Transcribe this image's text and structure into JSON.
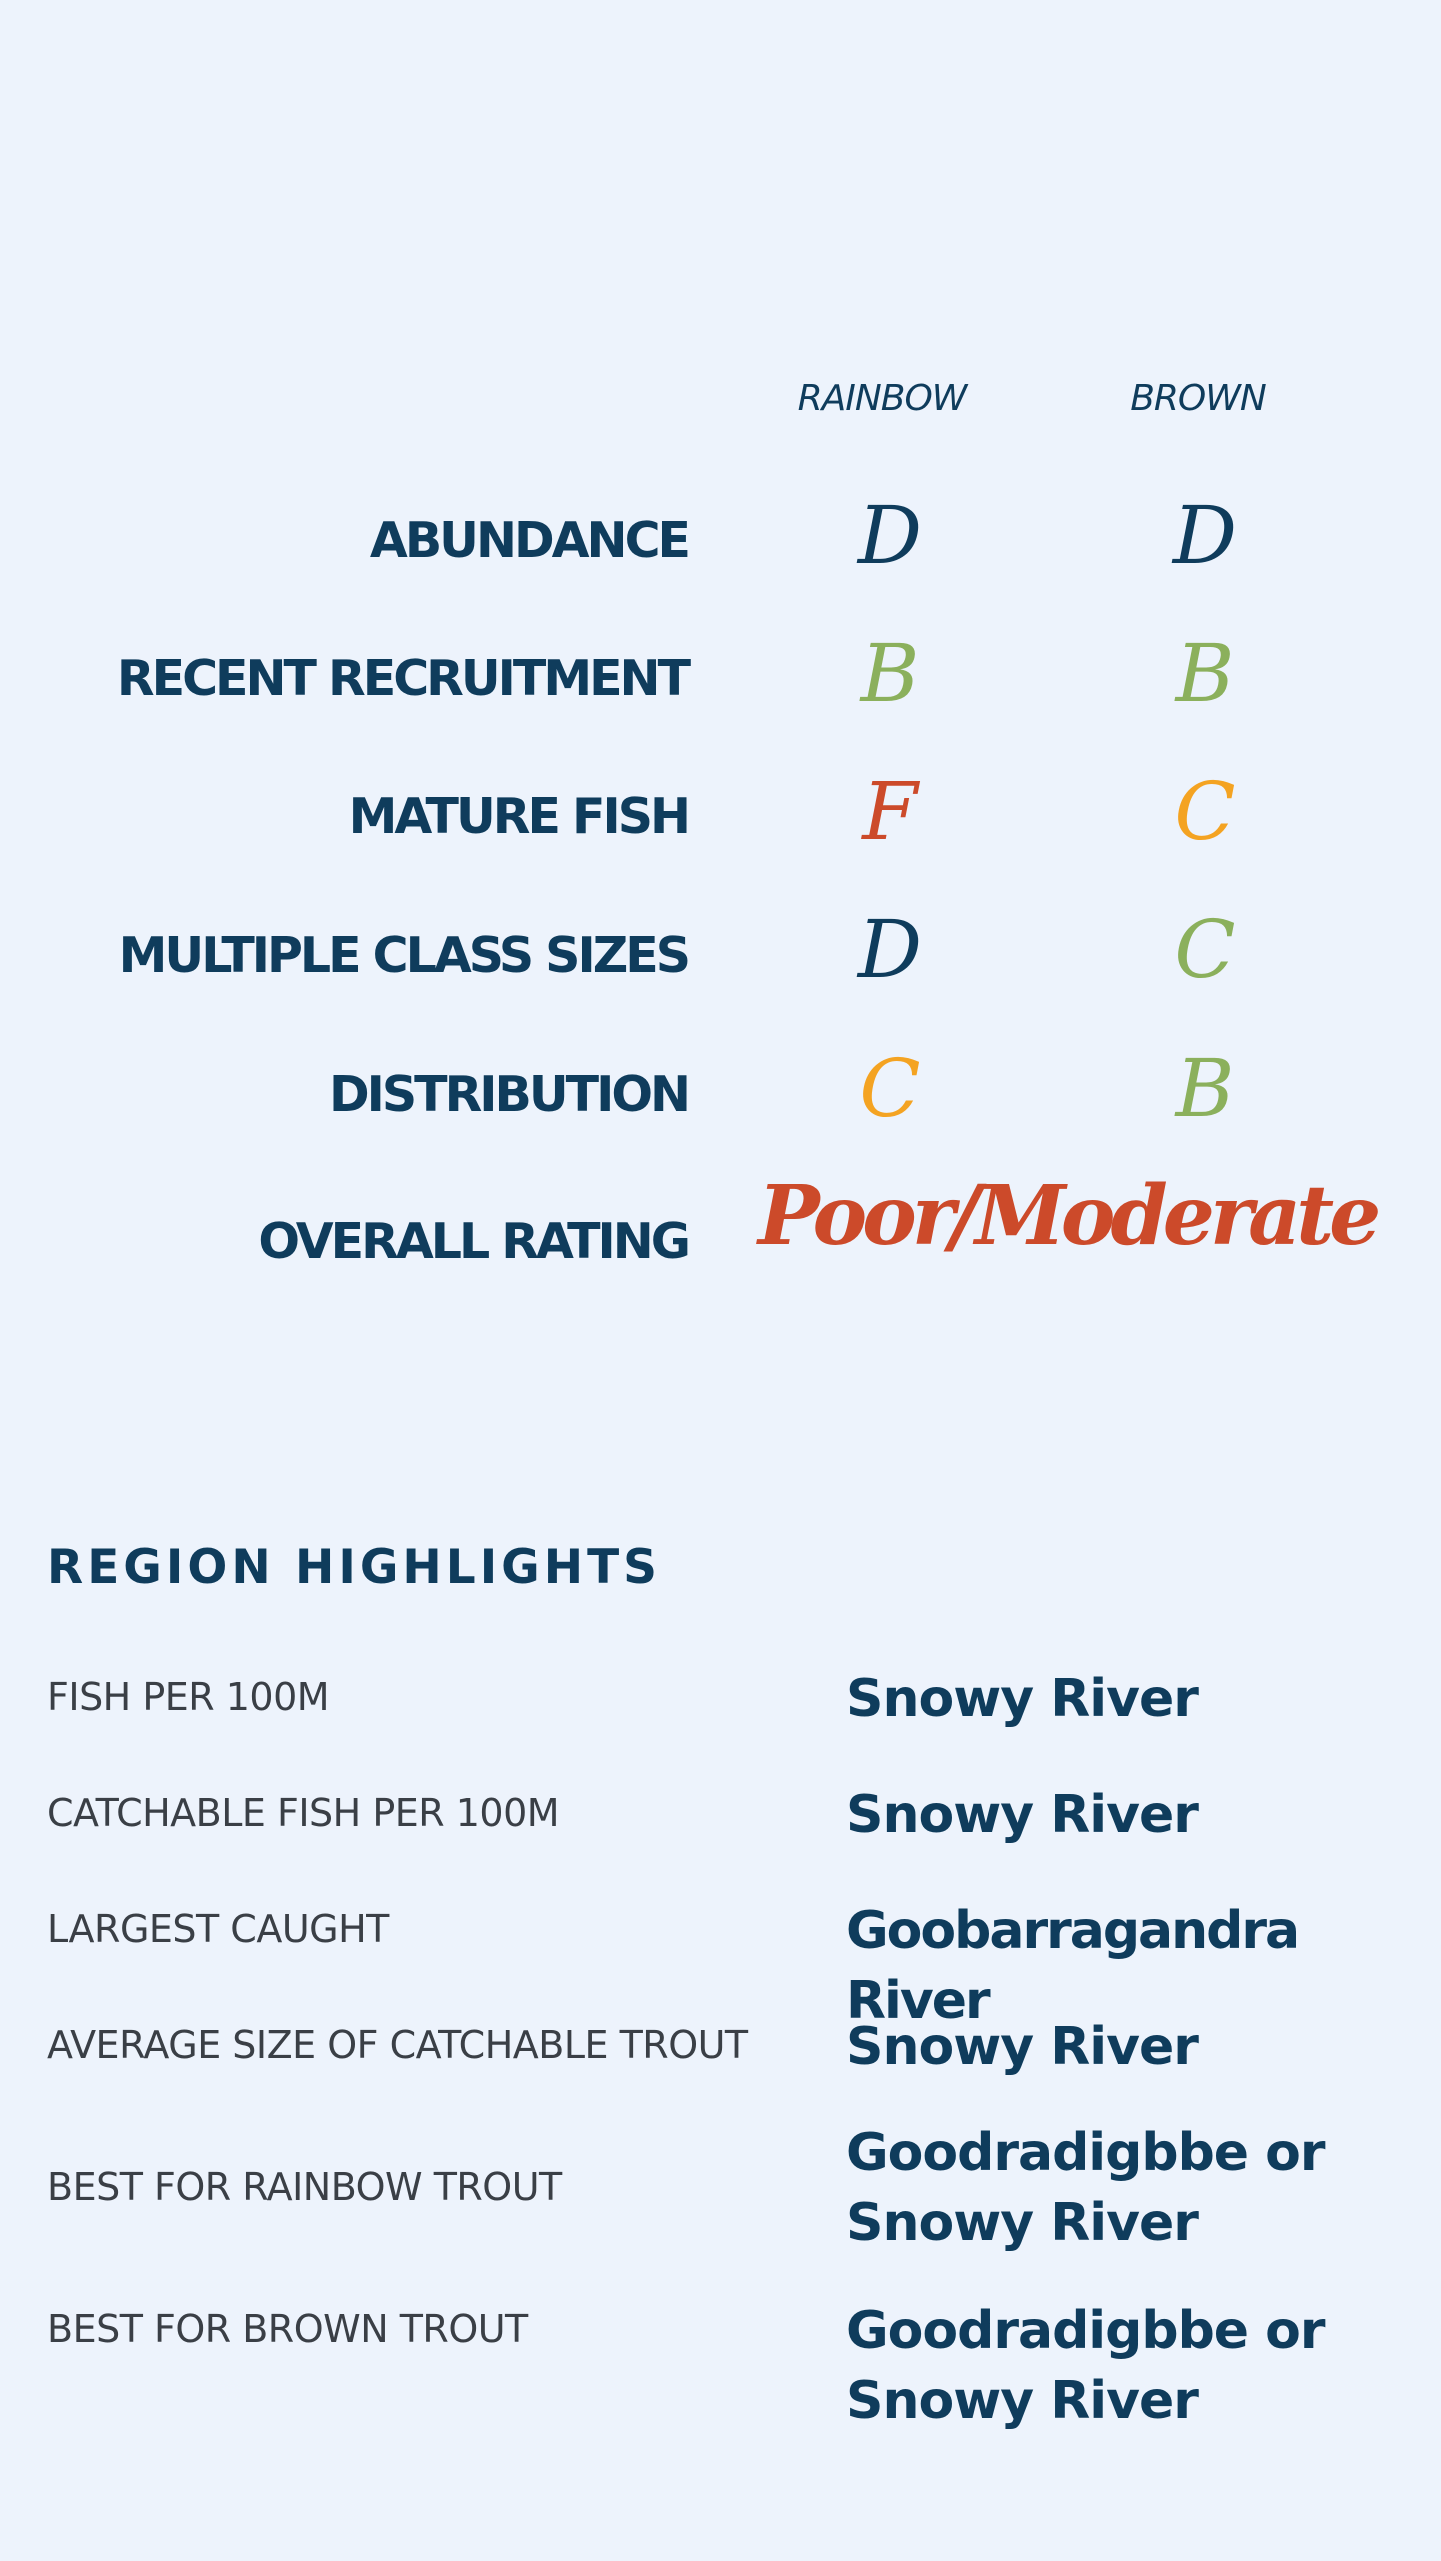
{
  "columns": {
    "rainbow": "RAINBOW",
    "brown": "BROWN"
  },
  "ratings": [
    {
      "label": "ABUNDANCE",
      "rainbow": "D",
      "brown": "D",
      "rainbow_color": "#0f3c5c",
      "brown_color": "#0f3c5c"
    },
    {
      "label": "RECENT RECRUITMENT",
      "rainbow": "B",
      "brown": "B",
      "rainbow_color": "#8bb05c",
      "brown_color": "#8bb05c"
    },
    {
      "label": "MATURE FISH",
      "rainbow": "F",
      "brown": "C",
      "rainbow_color": "#cc4a2a",
      "brown_color": "#f4a322"
    },
    {
      "label": "MULTIPLE CLASS SIZES",
      "rainbow": "D",
      "brown": "C",
      "rainbow_color": "#0f3c5c",
      "brown_color": "#8bb05c"
    },
    {
      "label": "DISTRIBUTION",
      "rainbow": "C",
      "brown": "B",
      "rainbow_color": "#f4a322",
      "brown_color": "#8bb05c"
    }
  ],
  "overall": {
    "label": "OVERALL RATING",
    "value": "Poor/Moderate",
    "color": "#cc4a2a"
  },
  "highlights": {
    "title": "REGION HIGHLIGHTS",
    "items": [
      {
        "label": "FISH PER 100M",
        "value": "Snowy River"
      },
      {
        "label": "CATCHABLE FISH PER 100M",
        "value": "Snowy River"
      },
      {
        "label": "LARGEST CAUGHT",
        "value": "Goobarragandra River"
      },
      {
        "label": "AVERAGE SIZE OF CATCHABLE TROUT",
        "value": "Snowy River"
      },
      {
        "label": "BEST FOR RAINBOW TROUT",
        "value_line1": "Goodradigbbe or",
        "value_line2": "Snowy River"
      },
      {
        "label": "BEST FOR BROWN TROUT",
        "value_line1": "Goodradigbbe or",
        "value_line2": "Snowy River"
      }
    ]
  }
}
